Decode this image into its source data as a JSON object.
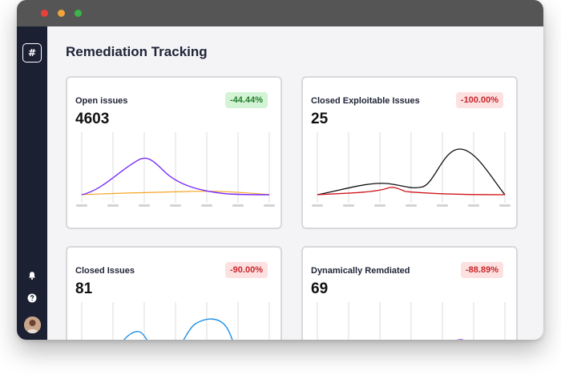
{
  "page": {
    "title": "Remediation Tracking"
  },
  "sidebar": {
    "logo": "#"
  },
  "cards": [
    {
      "title": "Open issues",
      "value": "4603",
      "delta": "-44.44%",
      "delta_color": "#237a2a"
    },
    {
      "title": "Closed Exploitable Issues",
      "value": "25",
      "delta": "-100.00%",
      "delta_color": "#c8262b"
    },
    {
      "title": "Closed Issues",
      "value": "81",
      "delta": "-90.00%",
      "delta_color": "#c8262b"
    },
    {
      "title": "Dynamically Remdiated",
      "value": "69",
      "delta": "-88.89%",
      "delta_color": "#c8262b"
    }
  ],
  "colors": {
    "sidebar": "#1c2033",
    "titlebar": "#555555",
    "purple": "#7b2ff7",
    "orange": "#f5a623",
    "black": "#111111",
    "red": "#d0141b",
    "blue": "#1e90e8"
  }
}
